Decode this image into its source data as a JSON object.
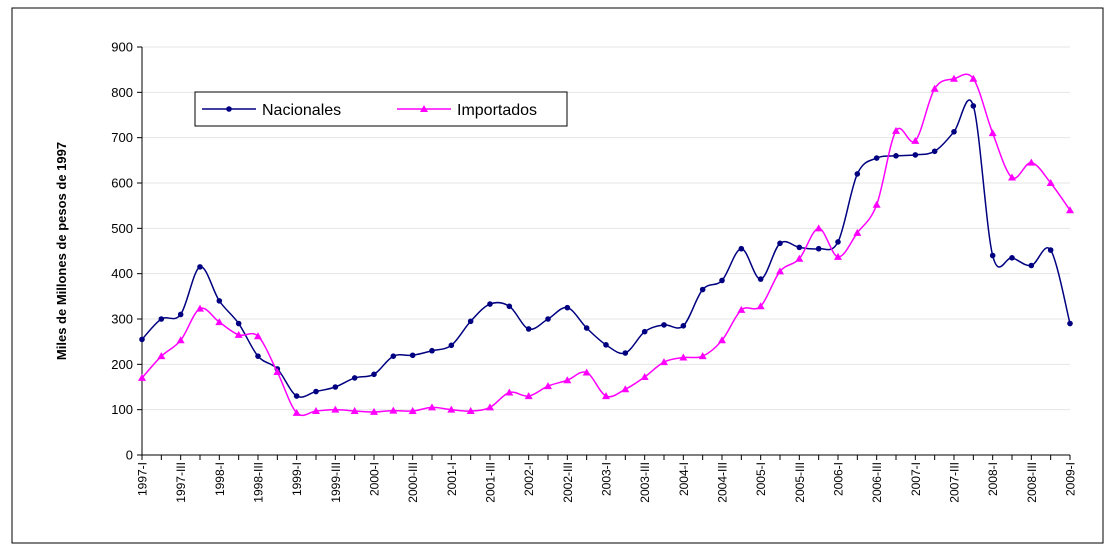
{
  "chart_data": {
    "type": "line",
    "ylabel": "Miles de Millones de pesos de 1997",
    "categories": [
      "1997-I",
      null,
      "1997-III",
      null,
      "1998-I",
      null,
      "1998-III",
      null,
      "1999-I",
      null,
      "1999-III",
      null,
      "2000-I",
      null,
      "2000-III",
      null,
      "2001-I",
      null,
      "2001-III",
      null,
      "2002-I",
      null,
      "2002-III",
      null,
      "2003-I",
      null,
      "2003-III",
      null,
      "2004-I",
      null,
      "2004-III",
      null,
      "2005-I",
      null,
      "2005-III",
      null,
      "2006-I",
      null,
      "2006-III",
      null,
      "2007-I",
      null,
      "2007-III",
      null,
      "2008-I",
      null,
      "2008-III",
      null,
      "2009-I"
    ],
    "series": [
      {
        "name": "Nacionales",
        "color": "#000080",
        "marker": "circle",
        "values": [
          255,
          300,
          310,
          415,
          340,
          290,
          218,
          190,
          130,
          140,
          150,
          170,
          178,
          218,
          220,
          230,
          242,
          295,
          333,
          328,
          278,
          300,
          325,
          280,
          243,
          225,
          272,
          287,
          285,
          365,
          385,
          455,
          388,
          467,
          458,
          455,
          470,
          620,
          655,
          660,
          662,
          670,
          713,
          770,
          440,
          435,
          418,
          452,
          290
        ]
      },
      {
        "name": "Importados",
        "color": "#ff00ff",
        "marker": "triangle",
        "values": [
          170,
          218,
          253,
          323,
          293,
          265,
          262,
          183,
          93,
          97,
          100,
          97,
          95,
          98,
          97,
          105,
          100,
          97,
          105,
          138,
          130,
          152,
          165,
          182,
          130,
          145,
          172,
          205,
          215,
          218,
          253,
          320,
          328,
          405,
          433,
          500,
          437,
          490,
          552,
          715,
          693,
          808,
          830,
          830,
          710,
          612,
          645,
          600,
          540
        ]
      }
    ],
    "ylim": [
      0,
      900
    ],
    "yticks": [
      0,
      100,
      200,
      300,
      400,
      500,
      600,
      700,
      800,
      900
    ],
    "grid": true
  }
}
